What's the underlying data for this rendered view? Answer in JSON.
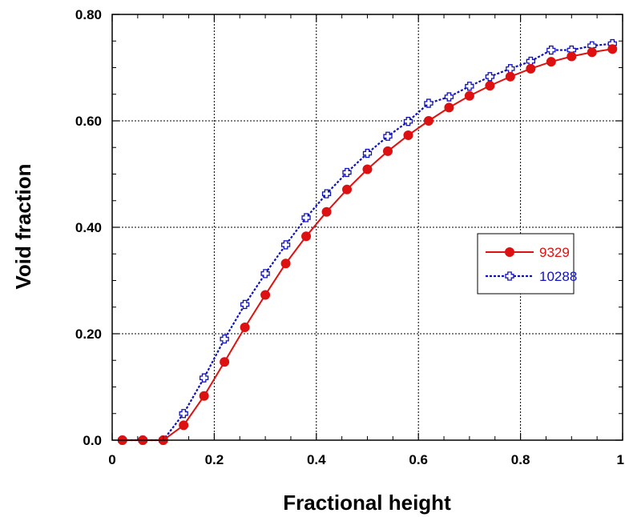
{
  "chart_data": {
    "type": "line",
    "title": "",
    "xlabel": "Fractional height",
    "ylabel": "Void fraction",
    "xlim": [
      0,
      1
    ],
    "ylim": [
      0,
      0.8
    ],
    "x_ticks": [
      0,
      0.2,
      0.4,
      0.6,
      0.8,
      1
    ],
    "x_tick_labels": [
      "0",
      "0.2",
      "0.4",
      "0.6",
      "0.8",
      "1"
    ],
    "y_ticks": [
      0,
      0.2,
      0.4,
      0.6,
      0.8
    ],
    "y_tick_labels": [
      "0.0",
      "0.20",
      "0.40",
      "0.60",
      "0.80"
    ],
    "grid": true,
    "legend_position": "right",
    "series": [
      {
        "name": "9329",
        "color": "#dd1111",
        "line_style": "solid",
        "marker": "filled-circle",
        "x": [
          0.02,
          0.06,
          0.1,
          0.14,
          0.18,
          0.22,
          0.26,
          0.3,
          0.34,
          0.38,
          0.42,
          0.46,
          0.5,
          0.54,
          0.58,
          0.62,
          0.66,
          0.7,
          0.74,
          0.78,
          0.82,
          0.86,
          0.9,
          0.94,
          0.98
        ],
        "y": [
          0.0,
          0.0,
          0.0,
          0.028,
          0.083,
          0.147,
          0.212,
          0.273,
          0.332,
          0.383,
          0.429,
          0.471,
          0.509,
          0.543,
          0.573,
          0.6,
          0.625,
          0.647,
          0.666,
          0.683,
          0.698,
          0.711,
          0.721,
          0.729,
          0.735
        ]
      },
      {
        "name": "10288",
        "color": "#1111bb",
        "line_style": "dotted",
        "marker": "open-cross",
        "x": [
          0.02,
          0.06,
          0.1,
          0.14,
          0.18,
          0.22,
          0.26,
          0.3,
          0.34,
          0.38,
          0.42,
          0.46,
          0.5,
          0.54,
          0.58,
          0.62,
          0.66,
          0.7,
          0.74,
          0.78,
          0.82,
          0.86,
          0.9,
          0.94,
          0.98
        ],
        "y": [
          0.0,
          0.0,
          0.0,
          0.05,
          0.117,
          0.19,
          0.255,
          0.313,
          0.367,
          0.418,
          0.463,
          0.503,
          0.539,
          0.571,
          0.599,
          0.633,
          0.645,
          0.665,
          0.683,
          0.698,
          0.712,
          0.733,
          0.733,
          0.741,
          0.745
        ]
      }
    ]
  }
}
